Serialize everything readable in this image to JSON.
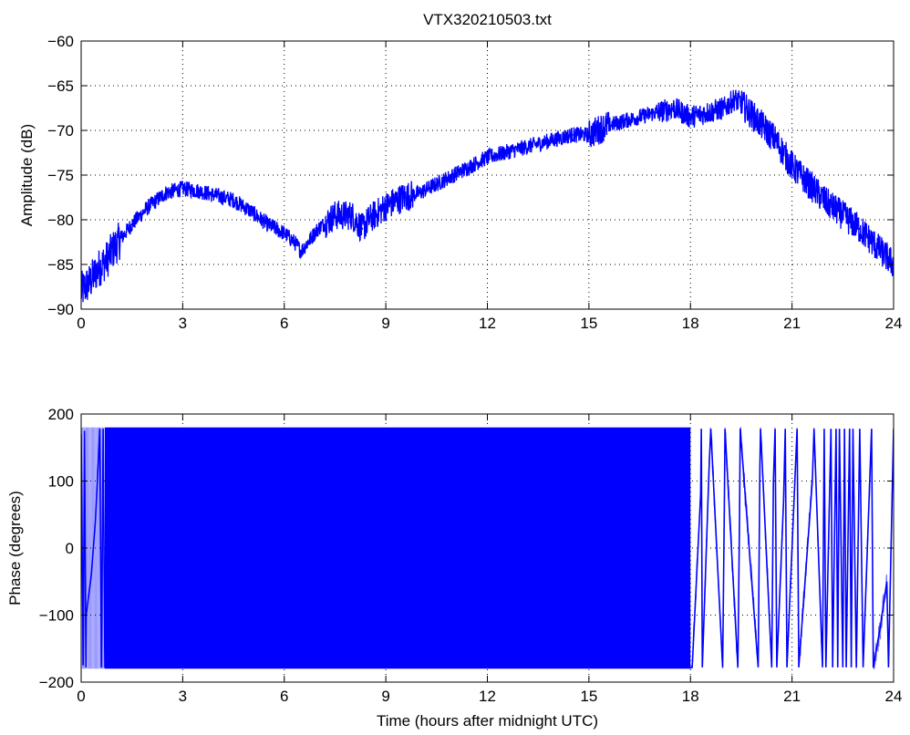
{
  "chart_data": [
    {
      "id": "amplitude",
      "type": "line",
      "title": "VTX320210503.txt",
      "xlabel": "",
      "ylabel": "Amplitude (dB)",
      "xlim": [
        0,
        24
      ],
      "ylim": [
        -90,
        -60
      ],
      "xticks": [
        0,
        3,
        6,
        9,
        12,
        15,
        18,
        21,
        24
      ],
      "yticks": [
        -90,
        -85,
        -80,
        -75,
        -70,
        -65,
        -60
      ],
      "grid": true,
      "line_color": "#0000ff",
      "series": [
        {
          "name": "",
          "x": [
            0,
            0.25,
            0.5,
            0.75,
            1,
            1.5,
            2,
            2.5,
            3,
            3.5,
            4,
            4.5,
            5,
            5.5,
            6,
            6.3,
            6.5,
            6.7,
            7,
            7.5,
            8,
            8.3,
            8.5,
            9,
            9.5,
            10,
            10.5,
            11,
            11.5,
            12,
            12.5,
            13,
            13.5,
            14,
            14.5,
            15,
            15.5,
            16,
            16.5,
            17,
            17.5,
            18,
            18.5,
            19,
            19.3,
            19.5,
            20,
            20.5,
            21,
            21.5,
            22,
            22.5,
            23,
            23.5,
            24
          ],
          "y": [
            -88,
            -87,
            -85.5,
            -84.5,
            -83,
            -80.5,
            -78.5,
            -77,
            -76.5,
            -76.8,
            -77.3,
            -77.8,
            -79,
            -80.5,
            -81.5,
            -82.5,
            -83.5,
            -82.5,
            -81,
            -79.5,
            -79.5,
            -81,
            -80,
            -78.5,
            -77.5,
            -77,
            -76,
            -75,
            -74,
            -73,
            -72.5,
            -72,
            -71.5,
            -71,
            -70.5,
            -70.5,
            -69.5,
            -69,
            -68.5,
            -68,
            -67.5,
            -68.5,
            -68,
            -67.5,
            -66.5,
            -67,
            -69,
            -71,
            -74,
            -76,
            -78,
            -79.5,
            -81,
            -83,
            -85
          ]
        }
      ]
    },
    {
      "id": "phase",
      "type": "line",
      "title": "",
      "xlabel": "Time (hours after midnight UTC)",
      "ylabel": "Phase (degrees)",
      "xlim": [
        0,
        24
      ],
      "ylim": [
        -200,
        200
      ],
      "xticks": [
        0,
        3,
        6,
        9,
        12,
        15,
        18,
        21,
        24
      ],
      "yticks": [
        -200,
        -100,
        0,
        100,
        200
      ],
      "grid": true,
      "line_color": "#0000ff",
      "phase_range": [
        -180,
        180
      ],
      "dense_wrapping_interval": [
        0.7,
        18.0
      ],
      "series": [
        {
          "name": "",
          "x": [
            0,
            0.06,
            0.1,
            0.14,
            0.15,
            0.3,
            0.42,
            0.48,
            0.55,
            0.6,
            0.65,
            0.7,
            18.0,
            18.05,
            18.3,
            18.32,
            18.35,
            18.55,
            18.6,
            18.95,
            19.0,
            19.02,
            19.4,
            19.45,
            19.47,
            20.0,
            20.05,
            20.07,
            20.4,
            20.45,
            20.5,
            20.55,
            20.75,
            20.8,
            20.85,
            21.1,
            21.15,
            21.2,
            21.6,
            21.65,
            21.9,
            21.95,
            22.0,
            22.15,
            22.2,
            22.3,
            22.35,
            22.4,
            22.5,
            22.55,
            22.6,
            22.7,
            22.75,
            22.8,
            22.9,
            23.0,
            23.1,
            23.35,
            23.4,
            23.6,
            23.8,
            23.85,
            24.0
          ],
          "y": [
            170,
            -175,
            175,
            -178,
            -100,
            -40,
            40,
            100,
            178,
            -178,
            178,
            -178,
            -178,
            -178,
            80,
            178,
            -178,
            120,
            178,
            -178,
            60,
            178,
            -178,
            50,
            178,
            -178,
            120,
            178,
            -178,
            100,
            178,
            -178,
            70,
            178,
            -178,
            120,
            178,
            -178,
            100,
            178,
            -178,
            178,
            -178,
            178,
            -178,
            178,
            -178,
            178,
            -178,
            178,
            -178,
            178,
            -178,
            178,
            -178,
            178,
            -178,
            178,
            -178,
            -120,
            -50,
            -178,
            178
          ]
        }
      ]
    }
  ]
}
